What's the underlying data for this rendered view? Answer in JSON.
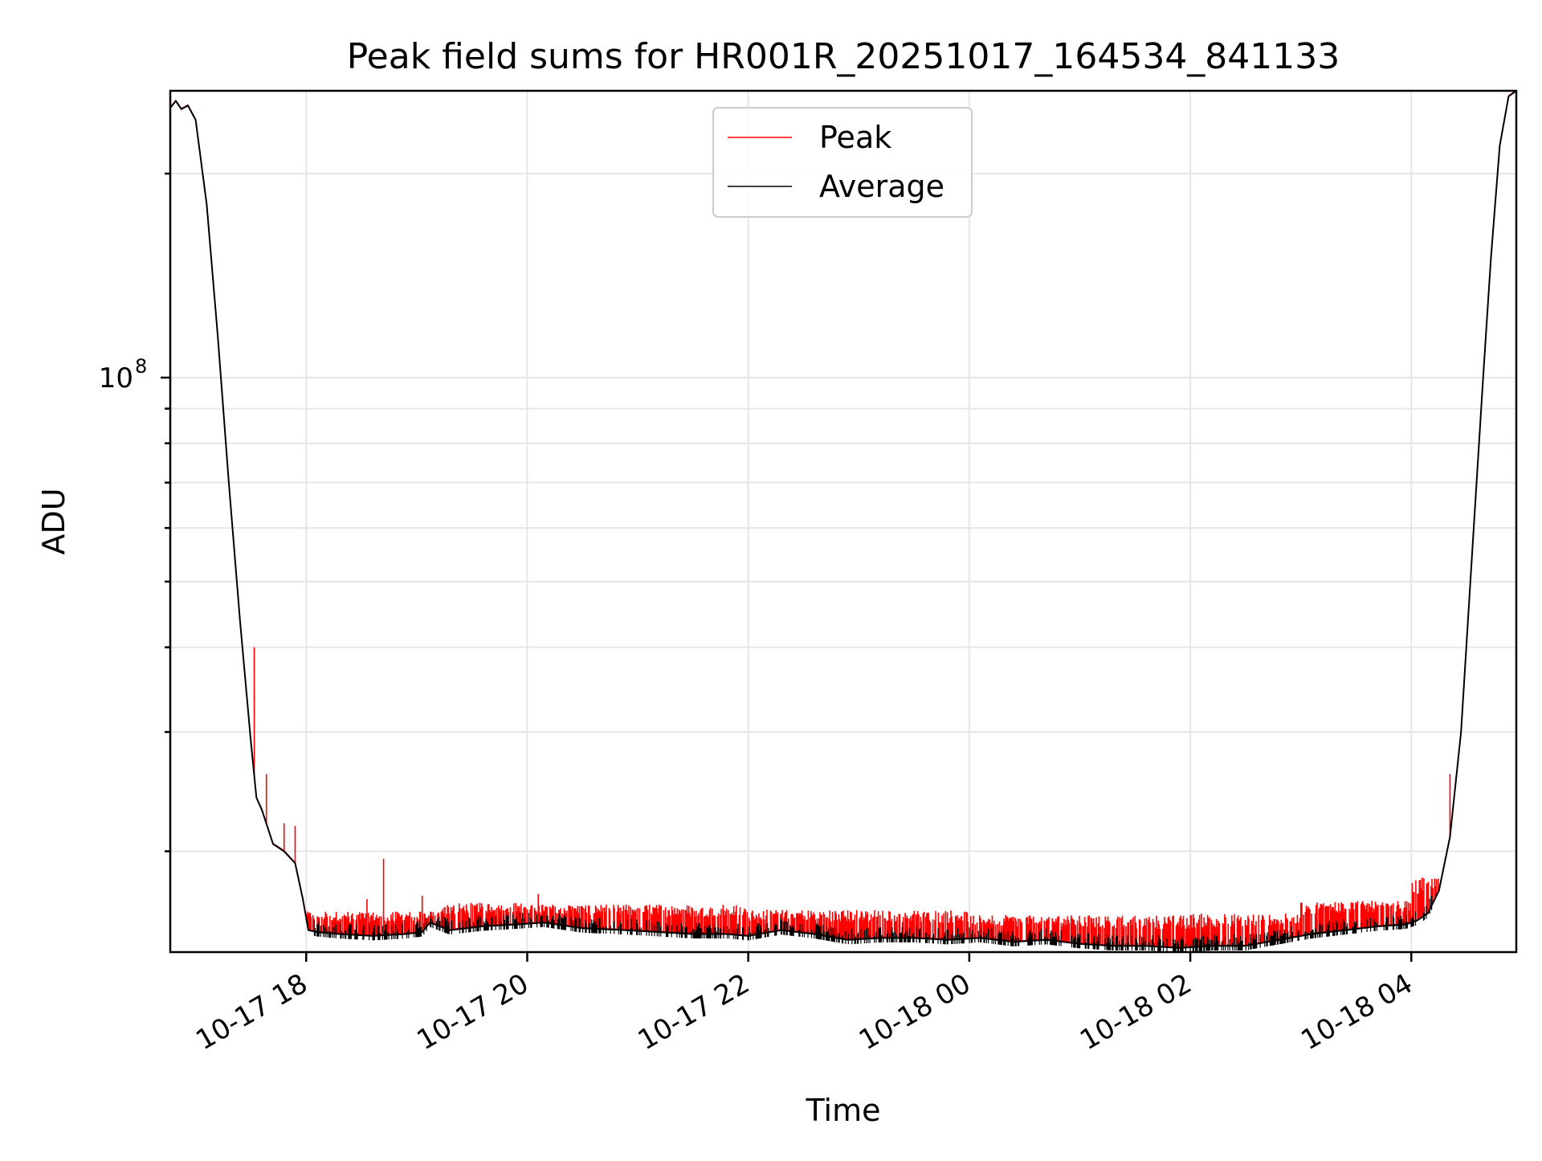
{
  "chart_data": {
    "type": "line",
    "title": "Peak field sums for HR001R_20251017_164534_841133",
    "xlabel": "Time",
    "ylabel": "ADU",
    "yscale": "log",
    "ylim": [
      14200000,
      265000000
    ],
    "xlim_hours": [
      16.77,
      28.95
    ],
    "grid": true,
    "legend": {
      "position": "top-center",
      "entries": [
        "Peak",
        "Average"
      ]
    },
    "x_ticks": [
      {
        "hour": 18,
        "label": "10-17 18"
      },
      {
        "hour": 20,
        "label": "10-17 20"
      },
      {
        "hour": 22,
        "label": "10-17 22"
      },
      {
        "hour": 24,
        "label": "10-18 00"
      },
      {
        "hour": 26,
        "label": "10-18 02"
      },
      {
        "hour": 28,
        "label": "10-18 04"
      }
    ],
    "y_major_ticks": [
      {
        "value": 100000000,
        "base": "10",
        "exponent": "8"
      }
    ],
    "y_minor_ticks": [
      20000000,
      30000000,
      40000000,
      50000000,
      60000000,
      70000000,
      80000000,
      90000000,
      200000000
    ],
    "series": [
      {
        "name": "Average",
        "color": "#000000",
        "hours": [
          16.77,
          16.82,
          16.87,
          16.93,
          17.0,
          17.1,
          17.2,
          17.3,
          17.4,
          17.5,
          17.55,
          17.6,
          17.7,
          17.8,
          17.9,
          17.97,
          18.02,
          18.1,
          18.3,
          18.6,
          18.9,
          19.05,
          19.12,
          19.3,
          19.6,
          19.9,
          20.15,
          20.5,
          20.9,
          21.2,
          21.5,
          21.8,
          22.0,
          22.3,
          22.6,
          22.9,
          23.2,
          23.5,
          23.8,
          24.1,
          24.4,
          24.7,
          25.0,
          25.3,
          25.6,
          25.9,
          26.2,
          26.5,
          26.8,
          27.1,
          27.4,
          27.7,
          27.95,
          28.05,
          28.15,
          28.25,
          28.35,
          28.45,
          28.55,
          28.65,
          28.72,
          28.8,
          28.88,
          28.95
        ],
        "values": [
          250000000,
          256000000,
          249000000,
          252000000,
          240000000,
          180000000,
          115000000,
          70000000,
          44000000,
          29000000,
          24000000,
          23000000,
          20500000,
          20000000,
          19200000,
          17000000,
          15300000,
          15200000,
          15100000,
          15000000,
          15100000,
          15200000,
          15700000,
          15300000,
          15500000,
          15600000,
          15700000,
          15400000,
          15300000,
          15200000,
          15100000,
          15100000,
          15000000,
          15300000,
          15100000,
          14800000,
          14900000,
          14900000,
          14800000,
          14900000,
          14700000,
          14800000,
          14600000,
          14500000,
          14500000,
          14400000,
          14500000,
          14500000,
          14800000,
          15100000,
          15300000,
          15500000,
          15600000,
          15800000,
          16200000,
          17500000,
          21000000,
          30000000,
          55000000,
          100000000,
          150000000,
          220000000,
          260000000,
          265000000
        ]
      },
      {
        "name": "Peak",
        "color": "#ff0000",
        "spike_ranges": [
          {
            "from": 18.0,
            "to": 19.2,
            "top": 16300000
          },
          {
            "from": 19.2,
            "to": 20.0,
            "top": 16800000
          },
          {
            "from": 20.0,
            "to": 22.0,
            "top": 16700000
          },
          {
            "from": 22.0,
            "to": 24.0,
            "top": 16400000
          },
          {
            "from": 24.0,
            "to": 26.0,
            "top": 16100000
          },
          {
            "from": 26.0,
            "to": 27.0,
            "top": 16200000
          },
          {
            "from": 27.0,
            "to": 28.0,
            "top": 16900000
          },
          {
            "from": 28.0,
            "to": 28.25,
            "top": 18300000
          }
        ],
        "notable_spikes": [
          {
            "hour": 17.53,
            "value": 40000000
          },
          {
            "hour": 17.64,
            "value": 26000000
          },
          {
            "hour": 17.8,
            "value": 22000000
          },
          {
            "hour": 17.9,
            "value": 21800000
          },
          {
            "hour": 18.7,
            "value": 19500000
          },
          {
            "hour": 18.55,
            "value": 17000000
          },
          {
            "hour": 19.05,
            "value": 17200000
          },
          {
            "hour": 20.1,
            "value": 17300000
          },
          {
            "hour": 28.35,
            "value": 26000000
          }
        ]
      }
    ]
  }
}
